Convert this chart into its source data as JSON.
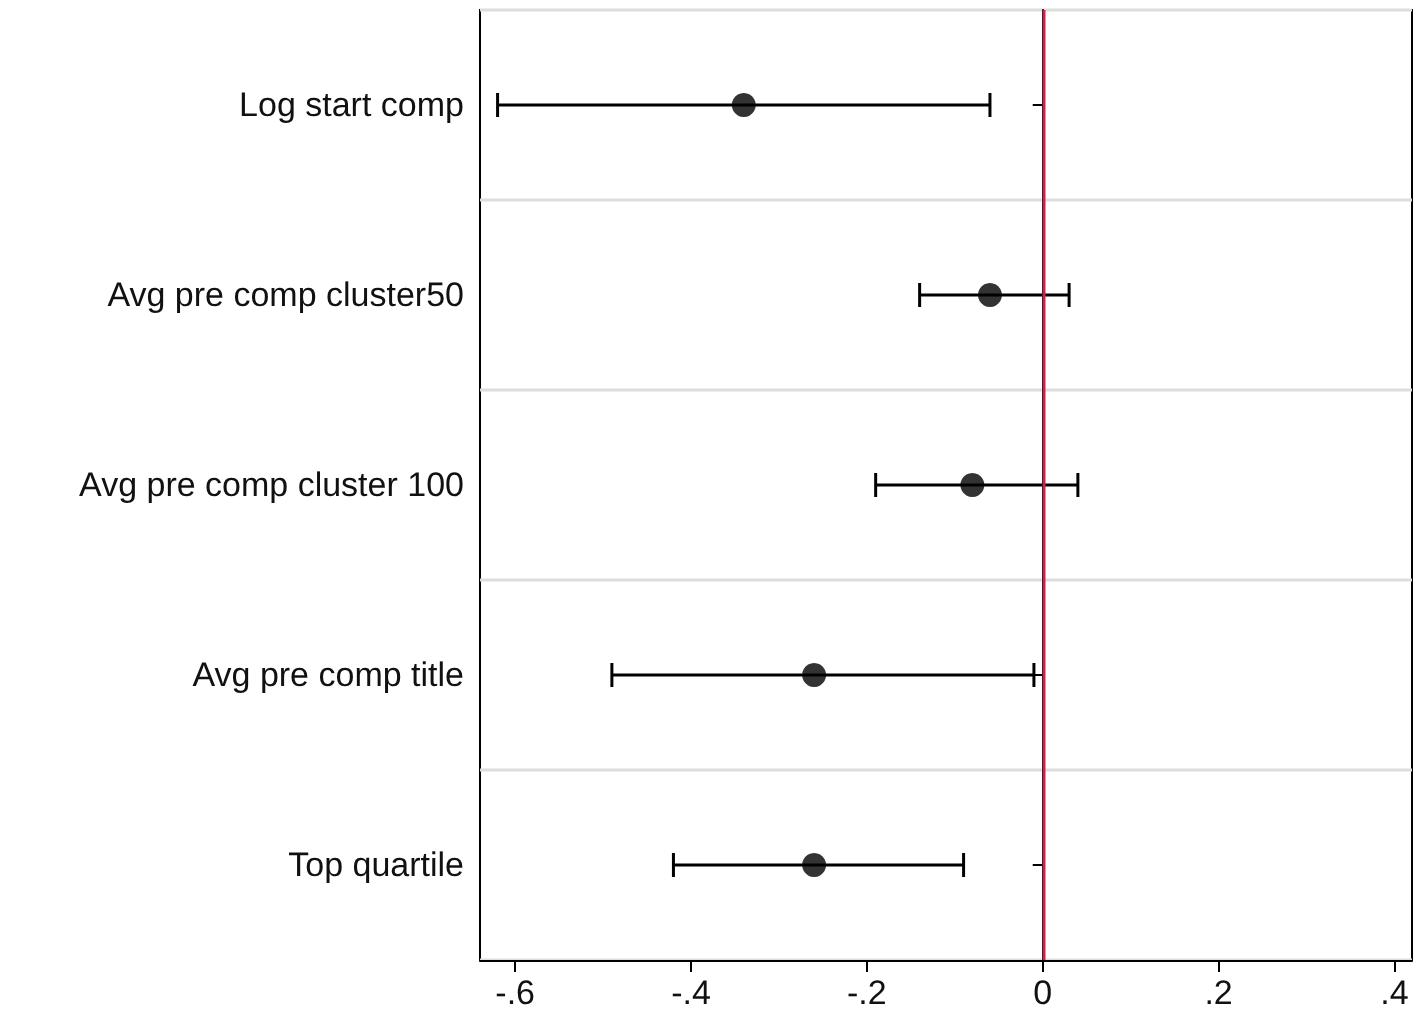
{
  "chart_data": {
    "type": "scatter",
    "orientation": "horizontal",
    "categories": [
      "Log start comp",
      "Avg pre comp cluster50",
      "Avg pre comp cluster 100",
      "Avg pre comp title",
      "Top quartile"
    ],
    "values": [
      -0.34,
      -0.06,
      -0.08,
      -0.26,
      -0.26
    ],
    "errors": [
      [
        -0.62,
        -0.06
      ],
      [
        -0.14,
        0.03
      ],
      [
        -0.19,
        0.04
      ],
      [
        -0.49,
        -0.01
      ],
      [
        -0.42,
        -0.09
      ]
    ],
    "color": "#000000",
    "marker": "circle",
    "xlim": [
      -0.64,
      0.42
    ],
    "xticks": [
      {
        "value": -0.6,
        "label": "-.6"
      },
      {
        "value": -0.4,
        "label": "-.4"
      },
      {
        "value": -0.2,
        "label": "-.2"
      },
      {
        "value": 0,
        "label": "0"
      },
      {
        "value": 0.2,
        "label": ".2"
      },
      {
        "value": 0.4,
        "label": ".4"
      }
    ],
    "grid": "y",
    "ref_lines": [
      {
        "axis": "x",
        "value": 0,
        "color": "#c8234a"
      }
    ]
  }
}
